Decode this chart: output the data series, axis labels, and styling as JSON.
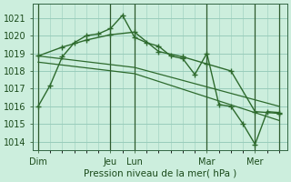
{
  "title": "",
  "xlabel": "Pression niveau de la mer( hPa )",
  "background_color": "#cceedd",
  "grid_color": "#99ccbb",
  "line_color": "#2d6a2d",
  "ylim": [
    1013.5,
    1021.8
  ],
  "yticks": [
    1014,
    1015,
    1016,
    1017,
    1018,
    1019,
    1020,
    1021
  ],
  "day_labels": [
    "Dim",
    "",
    "Jeu",
    "Lun",
    "",
    "Mar",
    "",
    "Mer"
  ],
  "day_positions": [
    0,
    24,
    72,
    96,
    120,
    168,
    216,
    240
  ],
  "xlim": [
    -5,
    248
  ],
  "vline_positions": [
    0,
    72,
    96,
    168,
    216
  ],
  "series1_x": [
    0,
    12,
    24,
    36,
    48,
    60,
    72,
    84,
    96,
    108,
    120,
    132,
    144,
    156,
    168,
    180,
    192,
    204,
    216,
    228,
    240
  ],
  "series1_y": [
    1016.0,
    1017.2,
    1018.8,
    1019.6,
    1020.0,
    1020.1,
    1020.4,
    1021.15,
    1019.9,
    1019.6,
    1019.4,
    1018.85,
    1018.7,
    1017.8,
    1019.0,
    1016.1,
    1016.0,
    1015.0,
    1013.85,
    1015.7,
    1015.65
  ],
  "series2_x": [
    0,
    24,
    48,
    72,
    96,
    120,
    144,
    168,
    192,
    216,
    240
  ],
  "series2_y": [
    1018.85,
    1019.35,
    1019.75,
    1020.05,
    1020.2,
    1019.1,
    1018.8,
    1018.4,
    1018.0,
    1015.7,
    1015.6
  ],
  "series3_x": [
    0,
    96,
    240
  ],
  "series3_y": [
    1018.85,
    1018.2,
    1016.0
  ],
  "series4_x": [
    0,
    96,
    240
  ],
  "series4_y": [
    1018.5,
    1017.85,
    1015.2
  ]
}
